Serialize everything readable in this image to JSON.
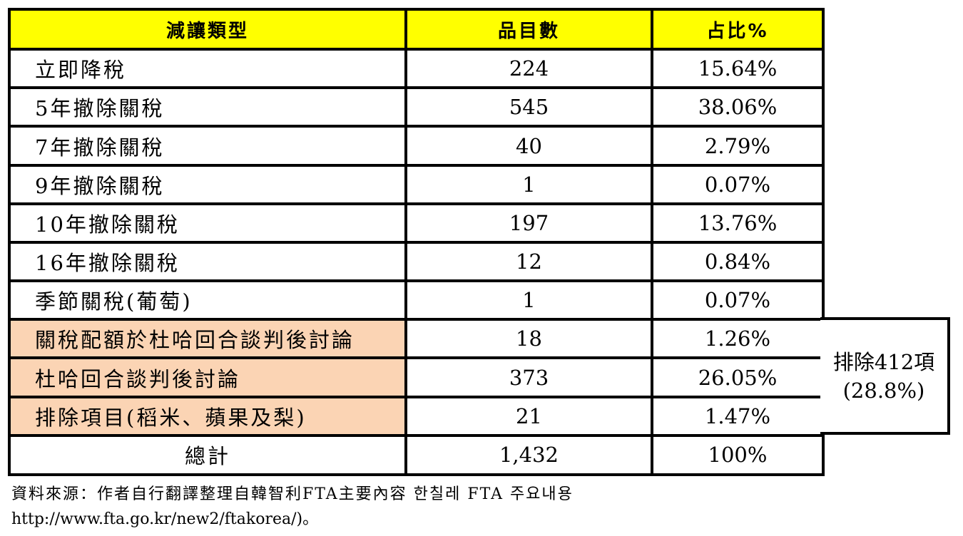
{
  "table": {
    "headers": [
      "減讓類型",
      "品目數",
      "占比%"
    ],
    "rows": [
      {
        "type": "立即降稅",
        "count": "224",
        "share": "15.64%"
      },
      {
        "type": "5年撤除關稅",
        "count": "545",
        "share": "38.06%"
      },
      {
        "type": "7年撤除關稅",
        "count": "40",
        "share": "2.79%"
      },
      {
        "type": "9年撤除關稅",
        "count": "1",
        "share": "0.07%"
      },
      {
        "type": "10年撤除關稅",
        "count": "197",
        "share": "13.76%"
      },
      {
        "type": "16年撤除關稅",
        "count": "12",
        "share": "0.84%"
      },
      {
        "type": "季節關稅(葡萄)",
        "count": "1",
        "share": "0.07%"
      },
      {
        "type": "關稅配額於杜哈回合談判後討論",
        "count": "18",
        "share": "1.26%"
      },
      {
        "type": "杜哈回合談判後討論",
        "count": "373",
        "share": "26.05%"
      },
      {
        "type": "排除項目(稻米、蘋果及梨)",
        "count": "21",
        "share": "1.47%"
      }
    ],
    "total": {
      "label": "總計",
      "count": "1,432",
      "share": "100%"
    },
    "highlight_color": "#fbd4b4",
    "header_color": "#ffff00"
  },
  "exclusion_note": {
    "line1": "排除412項",
    "line2": "(28.8%)"
  },
  "source": {
    "line1": "資料來源：作者自行翻譯整理自韓智利FTA主要內容 한칠레 FTA 주요내용",
    "line2": "http://www.fta.go.kr/new2/ftakorea/)。"
  }
}
